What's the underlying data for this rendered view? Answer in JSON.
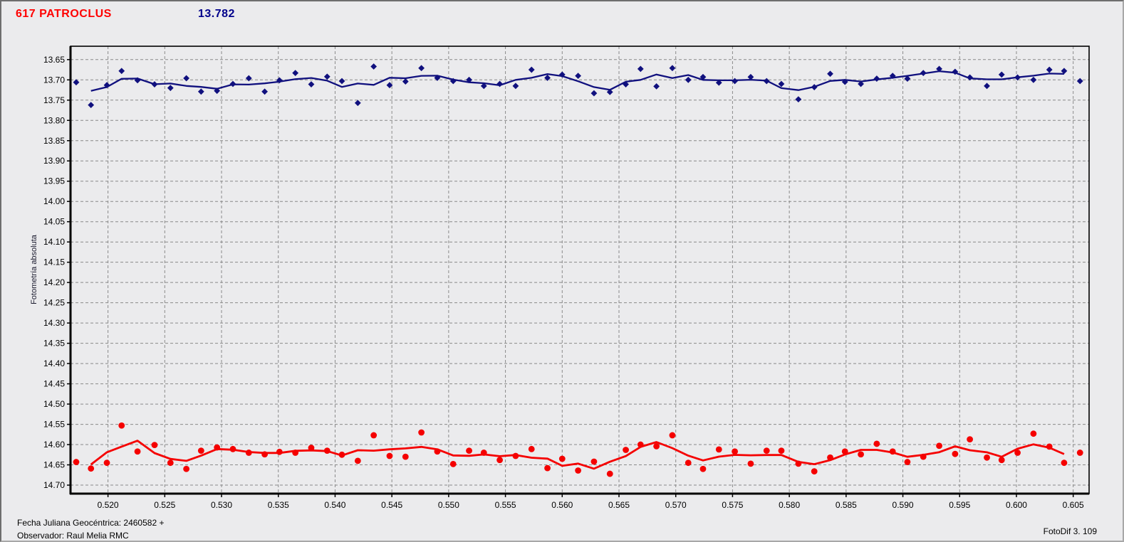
{
  "header": {
    "object_name": "617 PATROCLUS",
    "mean_magnitude": "13.782"
  },
  "footer": {
    "julian_date": "Fecha Juliana Geocéntrica: 2460582 +",
    "observer": "Observador: Raul Melia RMC",
    "software": "FotoDif 3. 109"
  },
  "colors": {
    "background": "#ebebed",
    "title_red": "#ff0000",
    "title_navy": "#00008b",
    "grid": "#8a8a8a",
    "axis": "#000000",
    "blue_series": "#10107e",
    "red_series": "#f50000"
  },
  "chart_data": {
    "type": "scatter",
    "title": "617 PATROCLUS",
    "displayed_value": "13.782",
    "xlabel": "",
    "ylabel": "Fotometría absoluta",
    "grid": true,
    "legend_position": "none",
    "xlim": [
      0.5167,
      0.6064
    ],
    "ylim": [
      14.721,
      13.617
    ],
    "y_axis_inverted_magnitudes": true,
    "x_tick_decimals": 3,
    "y_tick_decimals": 2,
    "x_ticks": [
      0.52,
      0.525,
      0.53,
      0.535,
      0.54,
      0.545,
      0.55,
      0.555,
      0.56,
      0.565,
      0.57,
      0.575,
      0.58,
      0.585,
      0.59,
      0.595,
      0.6,
      0.605
    ],
    "y_ticks": [
      13.65,
      13.7,
      13.75,
      13.8,
      13.85,
      13.9,
      13.95,
      14.0,
      14.05,
      14.1,
      14.15,
      14.2,
      14.25,
      14.3,
      14.35,
      14.4,
      14.45,
      14.5,
      14.55,
      14.6,
      14.65,
      14.7
    ],
    "x": [
      0.5172,
      0.5185,
      0.5199,
      0.5212,
      0.5226,
      0.5241,
      0.5255,
      0.5269,
      0.5282,
      0.5296,
      0.531,
      0.5324,
      0.5338,
      0.5351,
      0.5365,
      0.5379,
      0.5393,
      0.5406,
      0.542,
      0.5434,
      0.5448,
      0.5462,
      0.5476,
      0.549,
      0.5504,
      0.5518,
      0.5531,
      0.5545,
      0.5559,
      0.5573,
      0.5587,
      0.56,
      0.5614,
      0.5628,
      0.5642,
      0.5656,
      0.5669,
      0.5683,
      0.5697,
      0.5711,
      0.5724,
      0.5738,
      0.5752,
      0.5766,
      0.578,
      0.5793,
      0.5808,
      0.5822,
      0.5836,
      0.5849,
      0.5863,
      0.5877,
      0.5891,
      0.5904,
      0.5918,
      0.5932,
      0.5946,
      0.5959,
      0.5974,
      0.5987,
      0.6001,
      0.6015,
      0.6029,
      0.6042,
      0.6056
    ],
    "series": [
      {
        "name": "upper-blue-curve",
        "color": "#10107e",
        "marker": "diamond",
        "line": "moving-average-3",
        "values": [
          13.706,
          13.762,
          13.713,
          13.678,
          13.701,
          13.711,
          13.72,
          13.696,
          13.729,
          13.727,
          13.71,
          13.696,
          13.729,
          13.701,
          13.683,
          13.711,
          13.692,
          13.703,
          13.757,
          13.667,
          13.713,
          13.704,
          13.671,
          13.695,
          13.703,
          13.7,
          13.715,
          13.71,
          13.715,
          13.675,
          13.695,
          13.687,
          13.69,
          13.733,
          13.73,
          13.711,
          13.673,
          13.716,
          13.671,
          13.7,
          13.693,
          13.707,
          13.703,
          13.693,
          13.703,
          13.71,
          13.748,
          13.718,
          13.685,
          13.705,
          13.71,
          13.697,
          13.69,
          13.697,
          13.683,
          13.673,
          13.68,
          13.694,
          13.715,
          13.687,
          13.694,
          13.7,
          13.675,
          13.678,
          13.703
        ]
      },
      {
        "name": "lower-red-curve",
        "color": "#f50000",
        "marker": "circle",
        "line": "moving-average-3",
        "values": [
          14.643,
          14.659,
          14.645,
          14.553,
          14.617,
          14.601,
          14.645,
          14.66,
          14.615,
          14.607,
          14.611,
          14.62,
          14.624,
          14.618,
          14.62,
          14.608,
          14.615,
          14.625,
          14.64,
          14.577,
          14.628,
          14.63,
          14.57,
          14.617,
          14.648,
          14.615,
          14.62,
          14.638,
          14.628,
          14.611,
          14.658,
          14.635,
          14.664,
          14.642,
          14.672,
          14.613,
          14.6,
          14.604,
          14.577,
          14.645,
          14.66,
          14.612,
          14.617,
          14.647,
          14.615,
          14.615,
          14.647,
          14.666,
          14.632,
          14.617,
          14.624,
          14.598,
          14.617,
          14.643,
          14.63,
          14.603,
          14.623,
          14.587,
          14.632,
          14.638,
          14.62,
          14.573,
          14.605,
          14.645,
          14.62
        ]
      }
    ]
  }
}
